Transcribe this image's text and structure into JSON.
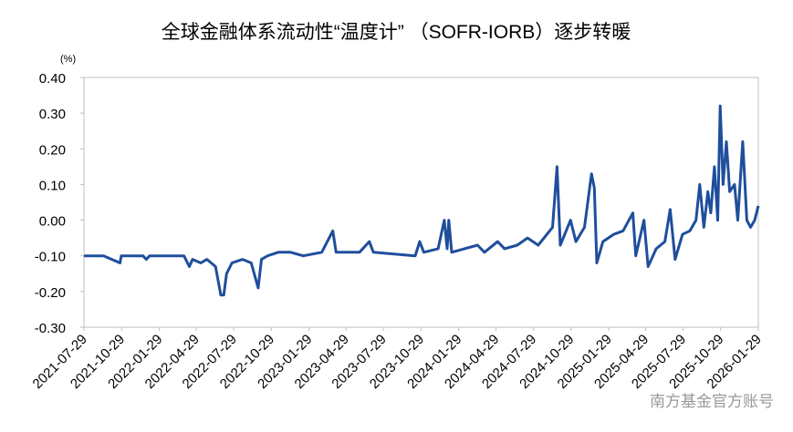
{
  "chart_data": {
    "type": "line",
    "title": "全球金融体系流动性“温度计” （SOFR-IORB）逐步转暖",
    "y_unit": "(%)",
    "watermark": "南方基金官方账号",
    "xlim": [
      "2021-07-29",
      "2026-01-29"
    ],
    "xticks": [
      "2021-07-29",
      "2021-10-29",
      "2022-01-29",
      "2022-04-29",
      "2022-07-29",
      "2022-10-29",
      "2023-01-29",
      "2023-04-29",
      "2023-07-29",
      "2023-10-29",
      "2024-01-29",
      "2024-04-29",
      "2024-07-29",
      "2024-10-29",
      "2025-01-29",
      "2025-04-29",
      "2025-07-29",
      "2025-10-29",
      "2026-01-29"
    ],
    "ylim": [
      -0.3,
      0.4
    ],
    "yticks": [
      {
        "value": -0.3,
        "label": "-0.30"
      },
      {
        "value": -0.2,
        "label": "-0.20"
      },
      {
        "value": -0.1,
        "label": "-0.10"
      },
      {
        "value": 0,
        "label": "0.00"
      },
      {
        "value": 0.1,
        "label": "0.10"
      },
      {
        "value": 0.2,
        "label": "0.20"
      },
      {
        "value": 0.3,
        "label": "0.30"
      },
      {
        "value": 0.4,
        "label": "0.40"
      }
    ],
    "grid": false,
    "color": "#1f4e9c",
    "x": [
      "2021-07-29",
      "2021-09-15",
      "2021-10-25",
      "2021-10-28",
      "2021-12-20",
      "2021-12-28",
      "2022-01-05",
      "2022-03-30",
      "2022-04-12",
      "2022-04-20",
      "2022-05-10",
      "2022-05-25",
      "2022-06-15",
      "2022-06-28",
      "2022-07-05",
      "2022-07-12",
      "2022-07-25",
      "2022-08-20",
      "2022-09-10",
      "2022-09-27",
      "2022-10-05",
      "2022-10-20",
      "2022-11-15",
      "2022-12-15",
      "2023-01-15",
      "2023-03-01",
      "2023-03-28",
      "2023-04-05",
      "2023-06-01",
      "2023-06-25",
      "2023-07-05",
      "2023-10-15",
      "2023-10-26",
      "2023-11-05",
      "2023-12-10",
      "2023-12-25",
      "2024-01-01",
      "2024-01-05",
      "2024-01-12",
      "2024-03-15",
      "2024-04-01",
      "2024-05-03",
      "2024-05-20",
      "2024-06-20",
      "2024-07-15",
      "2024-08-10",
      "2024-09-14",
      "2024-09-25",
      "2024-10-03",
      "2024-10-28",
      "2024-11-10",
      "2024-12-01",
      "2024-12-18",
      "2024-12-25",
      "2024-12-31",
      "2025-01-15",
      "2025-02-10",
      "2025-03-05",
      "2025-03-29",
      "2025-04-05",
      "2025-04-25",
      "2025-05-05",
      "2025-05-25",
      "2025-06-15",
      "2025-06-28",
      "2025-07-10",
      "2025-07-28",
      "2025-08-15",
      "2025-08-30",
      "2025-09-08",
      "2025-09-18",
      "2025-09-28",
      "2025-10-05",
      "2025-10-14",
      "2025-10-22",
      "2025-10-28",
      "2025-11-04",
      "2025-11-12",
      "2025-11-20",
      "2025-12-02",
      "2025-12-10",
      "2025-12-22",
      "2026-01-01",
      "2026-01-10",
      "2026-01-20",
      "2026-01-29"
    ],
    "values": [
      -0.1,
      -0.1,
      -0.12,
      -0.1,
      -0.1,
      -0.11,
      -0.1,
      -0.1,
      -0.13,
      -0.11,
      -0.12,
      -0.11,
      -0.13,
      -0.21,
      -0.21,
      -0.15,
      -0.12,
      -0.11,
      -0.12,
      -0.19,
      -0.11,
      -0.1,
      -0.09,
      -0.09,
      -0.1,
      -0.09,
      -0.03,
      -0.09,
      -0.09,
      -0.06,
      -0.09,
      -0.1,
      -0.06,
      -0.09,
      -0.08,
      0.0,
      -0.08,
      0.0,
      -0.09,
      -0.07,
      -0.09,
      -0.06,
      -0.08,
      -0.07,
      -0.05,
      -0.07,
      -0.02,
      0.15,
      -0.07,
      0.0,
      -0.06,
      -0.02,
      0.13,
      0.09,
      -0.12,
      -0.06,
      -0.04,
      -0.03,
      0.02,
      -0.1,
      0.0,
      -0.13,
      -0.08,
      -0.06,
      0.03,
      -0.11,
      -0.04,
      -0.03,
      0.0,
      0.1,
      -0.02,
      0.08,
      0.02,
      0.15,
      0.0,
      0.32,
      0.1,
      0.22,
      0.08,
      0.1,
      0.0,
      0.22,
      0.0,
      -0.02,
      0.0,
      0.04
    ]
  }
}
